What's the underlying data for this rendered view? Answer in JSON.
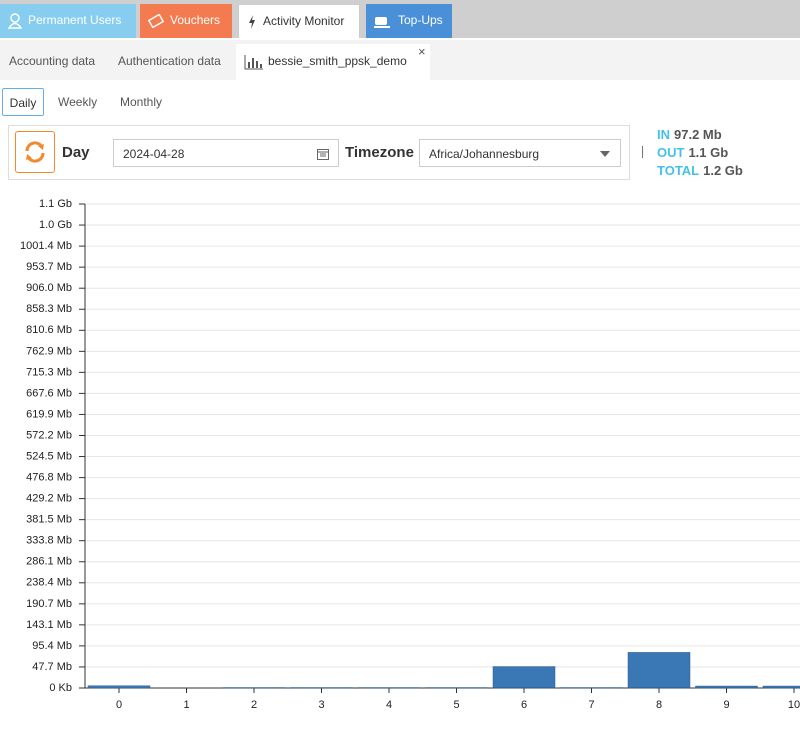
{
  "tabs": [
    "Permanent Users",
    "Vouchers",
    "Activity Monitor",
    "Top-Ups"
  ],
  "subtabs": [
    "Accounting data",
    "Authentication data",
    "bessie_smith_ppsk_demo"
  ],
  "periods": [
    "Daily",
    "Weekly",
    "Monthly"
  ],
  "toolbar": {
    "label": "Day",
    "date": "2024-04-28",
    "timezone_label": "Timezone",
    "timezone": "Africa/Johannesburg"
  },
  "totals": [
    {
      "label": "IN",
      "value": "97.2 Mb"
    },
    {
      "label": "OUT",
      "value": "1.1 Gb"
    },
    {
      "label": "TOTAL",
      "value": "1.2 Gb"
    }
  ],
  "chart_data": {
    "type": "bar",
    "stacked": true,
    "categories": [
      "0",
      "1",
      "2",
      "3",
      "4",
      "5",
      "6",
      "7",
      "8",
      "9",
      "10"
    ],
    "series": [
      {
        "color": "#c8a040",
        "values": [
          0,
          0,
          0,
          0,
          0,
          0,
          0.6,
          0,
          0.6,
          0.4,
          0.4
        ]
      },
      {
        "color": "#3a78b5",
        "values": [
          5,
          0,
          1,
          1,
          1,
          1,
          48,
          1,
          80,
          4,
          4
        ]
      }
    ],
    "ylim": [
      0,
      1096.8
    ],
    "yticks": [
      {
        "value": 0,
        "label": "0 Kb"
      },
      {
        "value": 47.7,
        "label": "47.7 Mb"
      },
      {
        "value": 95.4,
        "label": "95.4 Mb"
      },
      {
        "value": 143.1,
        "label": "143.1 Mb"
      },
      {
        "value": 190.7,
        "label": "190.7 Mb"
      },
      {
        "value": 238.4,
        "label": "238.4 Mb"
      },
      {
        "value": 286.1,
        "label": "286.1 Mb"
      },
      {
        "value": 333.8,
        "label": "333.8 Mb"
      },
      {
        "value": 381.5,
        "label": "381.5 Mb"
      },
      {
        "value": 429.2,
        "label": "429.2 Mb"
      },
      {
        "value": 476.8,
        "label": "476.8 Mb"
      },
      {
        "value": 524.5,
        "label": "524.5 Mb"
      },
      {
        "value": 572.2,
        "label": "572.2 Mb"
      },
      {
        "value": 619.9,
        "label": "619.9 Mb"
      },
      {
        "value": 667.6,
        "label": "667.6 Mb"
      },
      {
        "value": 715.3,
        "label": "715.3 Mb"
      },
      {
        "value": 762.9,
        "label": "762.9 Mb"
      },
      {
        "value": 810.6,
        "label": "810.6 Mb"
      },
      {
        "value": 858.3,
        "label": "858.3 Mb"
      },
      {
        "value": 906.0,
        "label": "906.0 Mb"
      },
      {
        "value": 953.7,
        "label": "953.7 Mb"
      },
      {
        "value": 1001.4,
        "label": "1001.4 Mb"
      },
      {
        "value": 1049.1,
        "label": "1.0 Gb"
      },
      {
        "value": 1096.8,
        "label": "1.1 Gb"
      }
    ],
    "grid": true
  }
}
